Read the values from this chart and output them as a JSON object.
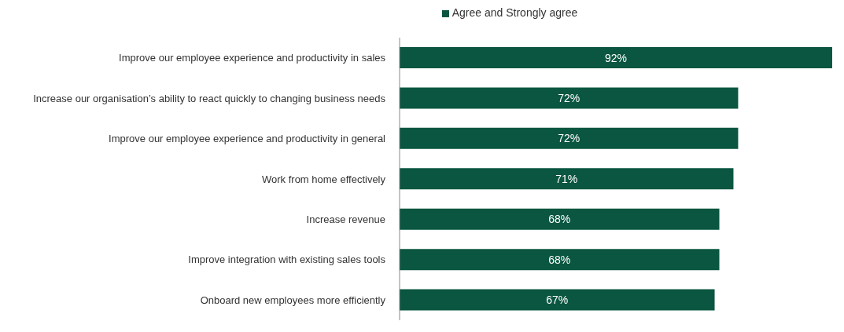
{
  "chart_data": {
    "type": "bar",
    "orientation": "horizontal",
    "categories": [
      "Improve our employee experience and productivity in sales",
      "Increase our organisation’s ability to react quickly to changing business needs",
      "Improve our employee experience and productivity in general",
      "Work from home effectively",
      "Increase revenue",
      "Improve integration with existing sales tools",
      "Onboard new employees more efficiently"
    ],
    "series": [
      {
        "name": "Agree and Strongly agree",
        "color": "#0a5640",
        "values": [
          92,
          72,
          72,
          71,
          68,
          68,
          67
        ],
        "value_labels": [
          "92%",
          "72%",
          "72%",
          "71%",
          "68%",
          "68%",
          "67%"
        ]
      }
    ],
    "legend": "top",
    "tick_labels": "y"
  }
}
